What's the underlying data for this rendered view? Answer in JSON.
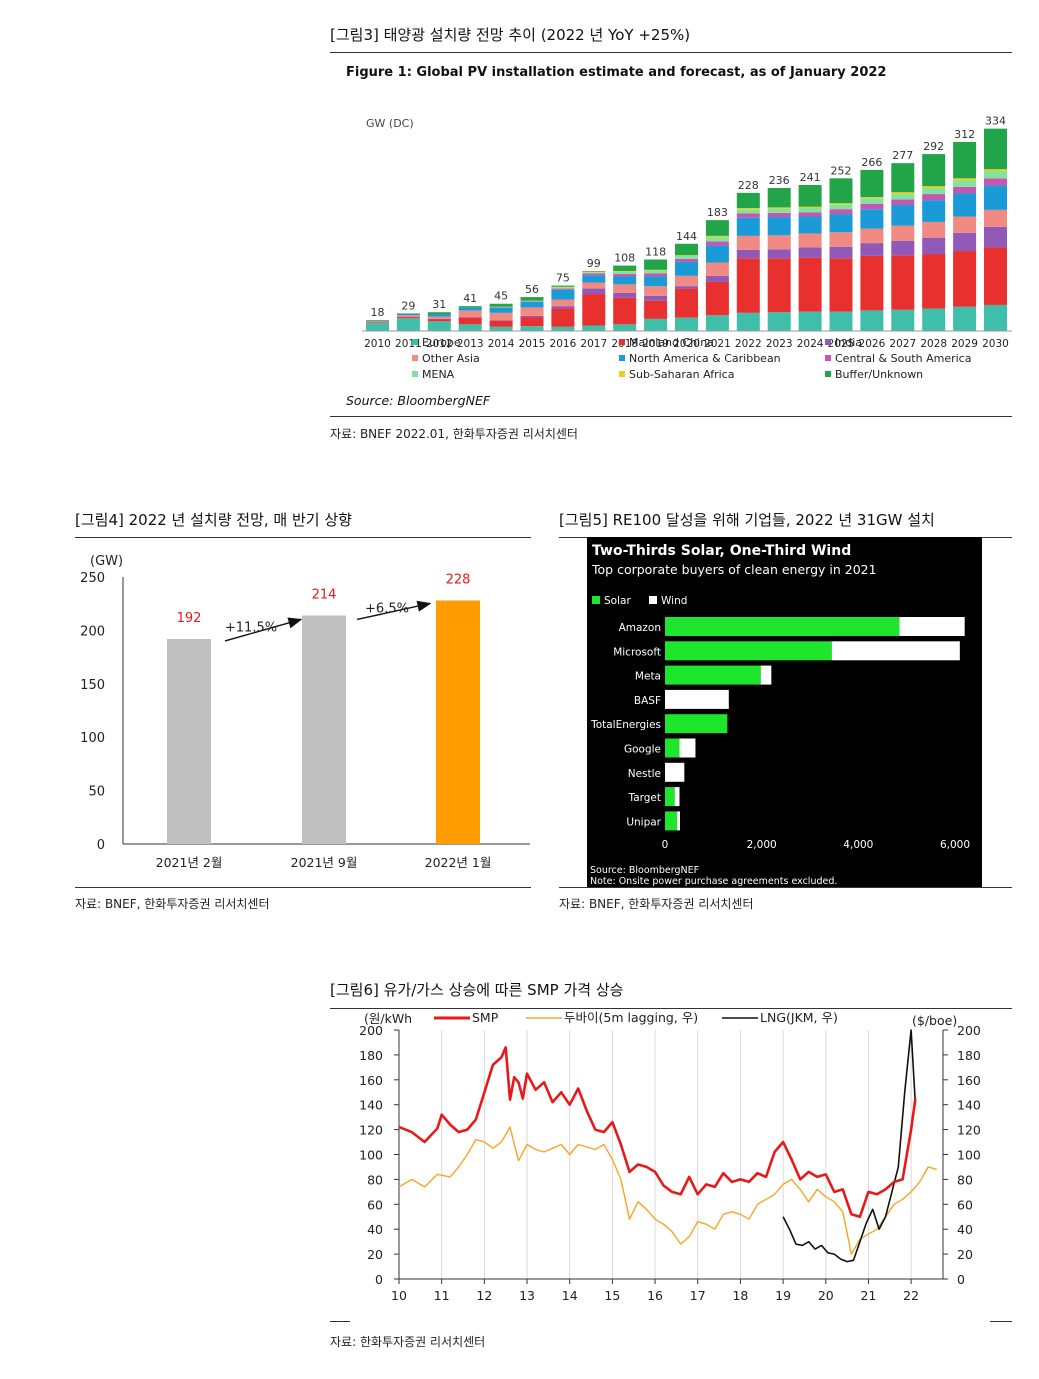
{
  "fig3": {
    "caption": "[그림3]    태양광 설치량 전망 추이 (2022 년 YoY +25%)",
    "inner_title": "Figure 1:  Global PV installation estimate and forecast, as of January 2022",
    "unit": "GW (DC)",
    "source_inner": "Source: BloombergNEF",
    "source": "자료: BNEF 2022.01, 한화투자증권 리서치센터"
  },
  "fig4": {
    "caption": "[그림4]    2022 년 설치량 전망, 매 반기 상향",
    "source": "자료: BNEF, 한화투자증권 리서치센터"
  },
  "fig5": {
    "caption": "[그림5]    RE100 달성을 위해 기업들, 2022 년 31GW 설치",
    "source": "자료: BNEF, 한화투자증권 리서치센터"
  },
  "fig6": {
    "caption": "[그림6]    유가/가스 상승에 따른 SMP 가격 상승",
    "source": "자료: 한화투자증권 리서치센터"
  },
  "chart_data": [
    {
      "id": "fig3",
      "type": "bar",
      "stacked": true,
      "title": "Figure 1:  Global PV installation estimate and forecast, as of January 2022",
      "ylabel": "GW (DC)",
      "ylim": [
        0,
        340
      ],
      "categories": [
        "2010",
        "2011",
        "2012",
        "2013",
        "2014",
        "2015",
        "2016",
        "2017",
        "2018",
        "2019",
        "2020",
        "2021",
        "2022",
        "2023",
        "2024",
        "2025",
        "2026",
        "2027",
        "2028",
        "2029",
        "2030"
      ],
      "totals": [
        18,
        29,
        31,
        41,
        45,
        56,
        75,
        99,
        108,
        118,
        144,
        183,
        228,
        236,
        241,
        252,
        266,
        277,
        292,
        312,
        334
      ],
      "series": [
        {
          "name": "Europe",
          "color": "#3fbfaa",
          "values": [
            13,
            21,
            16,
            11,
            7,
            8,
            7,
            9,
            11,
            20,
            22,
            26,
            30,
            31,
            32,
            32,
            34,
            35,
            37,
            40,
            43
          ]
        },
        {
          "name": "Mainland China",
          "color": "#e8312f",
          "values": [
            1,
            2,
            3,
            11,
            10,
            15,
            30,
            52,
            44,
            30,
            48,
            55,
            90,
            89,
            89,
            88,
            90,
            90,
            90,
            92,
            95
          ]
        },
        {
          "name": "India",
          "color": "#9159b7",
          "values": [
            0,
            0,
            1,
            1,
            1,
            2,
            4,
            9,
            8,
            8,
            4,
            10,
            14,
            15,
            17,
            19,
            21,
            24,
            27,
            30,
            34
          ]
        },
        {
          "name": "Other Asia",
          "color": "#f08a82",
          "values": [
            2,
            3,
            4,
            11,
            12,
            14,
            11,
            10,
            14,
            16,
            17,
            22,
            23,
            23,
            23,
            24,
            24,
            25,
            26,
            27,
            28
          ]
        },
        {
          "name": "North America & Caribbean",
          "color": "#1a9ad6",
          "values": [
            1,
            2,
            4,
            5,
            8,
            9,
            16,
            12,
            13,
            16,
            23,
            28,
            30,
            30,
            28,
            30,
            32,
            34,
            36,
            38,
            40
          ]
        },
        {
          "name": "Central & South America",
          "color": "#c557b3",
          "values": [
            0,
            0,
            0,
            0,
            1,
            1,
            2,
            3,
            4,
            5,
            5,
            7,
            7,
            7,
            7,
            8,
            9,
            9,
            10,
            11,
            12
          ]
        },
        {
          "name": "MENA",
          "color": "#82e49c",
          "values": [
            0,
            0,
            0,
            0,
            1,
            1,
            2,
            2,
            4,
            5,
            5,
            7,
            7,
            7,
            7,
            8,
            9,
            9,
            10,
            11,
            12
          ]
        },
        {
          "name": "Sub-Saharan Africa",
          "color": "#f2cc1c",
          "values": [
            0,
            0,
            0,
            0,
            0,
            0,
            1,
            1,
            1,
            1,
            1,
            2,
            2,
            2,
            2,
            2,
            2,
            3,
            3,
            3,
            3
          ]
        },
        {
          "name": "Buffer/Unknown",
          "color": "#22a548",
          "values": [
            1,
            1,
            3,
            2,
            5,
            6,
            2,
            1,
            9,
            17,
            19,
            26,
            25,
            32,
            36,
            41,
            45,
            48,
            53,
            60,
            67
          ]
        }
      ]
    },
    {
      "id": "fig4",
      "type": "bar",
      "ylabel": "(GW)",
      "ylim": [
        0,
        250
      ],
      "yticks": [
        0,
        50,
        100,
        150,
        200,
        250
      ],
      "categories": [
        "2021년  2월",
        "2021년  9월",
        "2022년  1월"
      ],
      "values": [
        192,
        214,
        228
      ],
      "colors": [
        "#c0c0c0",
        "#c0c0c0",
        "#ff9c00"
      ],
      "annotations": [
        "+11.5%",
        "+6.5%"
      ]
    },
    {
      "id": "fig5",
      "type": "bar",
      "orientation": "horizontal",
      "stacked": true,
      "title": "Two-Thirds Solar, One-Third Wind",
      "subtitle": "Top corporate buyers of clean energy in 2021",
      "categories": [
        "Amazon",
        "Microsoft",
        "Meta",
        "BASF",
        "TotalEnergies",
        "Google",
        "Nestle",
        "Target",
        "Unipar"
      ],
      "series": [
        {
          "name": "Solar",
          "color": "#1ee62c",
          "values": [
            4850,
            3450,
            1980,
            0,
            1290,
            300,
            0,
            200,
            250
          ]
        },
        {
          "name": "Wind",
          "color": "#ffffff",
          "values": [
            1350,
            2650,
            220,
            1320,
            0,
            330,
            400,
            100,
            60
          ]
        }
      ],
      "xlim": [
        0,
        6200
      ],
      "xticks": [
        "0",
        "2,000",
        "4,000",
        "6,000"
      ],
      "xtick_values": [
        0,
        2000,
        4000,
        6000
      ],
      "source": "Source: BloombergNEF",
      "note": "Note: Onsite power purchase agreements excluded."
    },
    {
      "id": "fig6",
      "type": "line",
      "ylabel_left": "(원/kWh",
      "ylabel_right": "($/boe)",
      "ylim": [
        0,
        200
      ],
      "yticks": [
        0,
        20,
        40,
        60,
        80,
        100,
        120,
        140,
        160,
        180,
        200
      ],
      "xlim": [
        10,
        23
      ],
      "xticks": [
        "10",
        "11",
        "12",
        "13",
        "14",
        "15",
        "16",
        "17",
        "18",
        "19",
        "20",
        "21",
        "22"
      ],
      "series": [
        {
          "name": "SMP",
          "color": "#e8191a",
          "axis": "left",
          "x": [
            10,
            10.3,
            10.6,
            10.9,
            11.0,
            11.2,
            11.4,
            11.6,
            11.8,
            12.0,
            12.2,
            12.4,
            12.5,
            12.6,
            12.7,
            12.8,
            12.9,
            13.0,
            13.2,
            13.4,
            13.6,
            13.8,
            14.0,
            14.2,
            14.4,
            14.6,
            14.8,
            15.0,
            15.2,
            15.4,
            15.6,
            15.8,
            16.0,
            16.2,
            16.4,
            16.6,
            16.8,
            17.0,
            17.2,
            17.4,
            17.6,
            17.8,
            18.0,
            18.2,
            18.4,
            18.6,
            18.8,
            19.0,
            19.2,
            19.4,
            19.6,
            19.8,
            20.0,
            20.2,
            20.4,
            20.6,
            20.8,
            21.0,
            21.2,
            21.4,
            21.6,
            21.8,
            22.0,
            22.1
          ],
          "y": [
            122,
            118,
            110,
            121,
            132,
            124,
            118,
            120,
            128,
            150,
            172,
            178,
            186,
            144,
            162,
            158,
            145,
            165,
            152,
            158,
            142,
            150,
            140,
            153,
            135,
            120,
            118,
            126,
            108,
            86,
            92,
            90,
            86,
            75,
            70,
            68,
            82,
            68,
            76,
            74,
            85,
            78,
            80,
            78,
            85,
            82,
            102,
            110,
            96,
            80,
            86,
            82,
            84,
            70,
            72,
            52,
            50,
            70,
            68,
            72,
            78,
            80,
            120,
            145
          ]
        },
        {
          "name": "두바이(5m lagging, 우)",
          "color": "#f5a623",
          "axis": "right",
          "x": [
            10,
            10.3,
            10.6,
            10.9,
            11.2,
            11.4,
            11.6,
            11.8,
            12.0,
            12.2,
            12.4,
            12.6,
            12.8,
            13.0,
            13.2,
            13.4,
            13.6,
            13.8,
            14.0,
            14.2,
            14.4,
            14.6,
            14.8,
            15.0,
            15.2,
            15.4,
            15.6,
            15.8,
            16.0,
            16.2,
            16.4,
            16.6,
            16.8,
            17.0,
            17.2,
            17.4,
            17.6,
            17.8,
            18.0,
            18.2,
            18.4,
            18.6,
            18.8,
            19.0,
            19.2,
            19.4,
            19.6,
            19.8,
            20.0,
            20.2,
            20.4,
            20.6,
            20.8,
            21.0,
            21.2,
            21.4,
            21.6,
            21.8,
            22.0,
            22.2,
            22.4,
            22.6
          ],
          "y": [
            74,
            80,
            74,
            84,
            82,
            90,
            100,
            112,
            110,
            105,
            110,
            122,
            95,
            108,
            104,
            102,
            105,
            108,
            100,
            108,
            106,
            104,
            108,
            96,
            80,
            48,
            62,
            56,
            48,
            44,
            38,
            28,
            34,
            46,
            44,
            40,
            52,
            54,
            52,
            48,
            60,
            64,
            68,
            76,
            80,
            72,
            62,
            72,
            66,
            62,
            54,
            20,
            32,
            36,
            40,
            50,
            60,
            64,
            70,
            78,
            90,
            88
          ]
        },
        {
          "name": "LNG(JKM, 우)",
          "color": "#111111",
          "axis": "right",
          "x": [
            19.0,
            19.15,
            19.3,
            19.45,
            19.6,
            19.75,
            19.9,
            20.05,
            20.2,
            20.35,
            20.5,
            20.65,
            20.8,
            20.95,
            21.1,
            21.25,
            21.4,
            21.55,
            21.7,
            21.85,
            22.0,
            22.1
          ],
          "y": [
            50,
            40,
            28,
            27,
            30,
            24,
            27,
            21,
            20,
            16,
            14,
            15,
            30,
            45,
            56,
            40,
            50,
            70,
            90,
            150,
            200,
            140
          ]
        }
      ]
    }
  ]
}
